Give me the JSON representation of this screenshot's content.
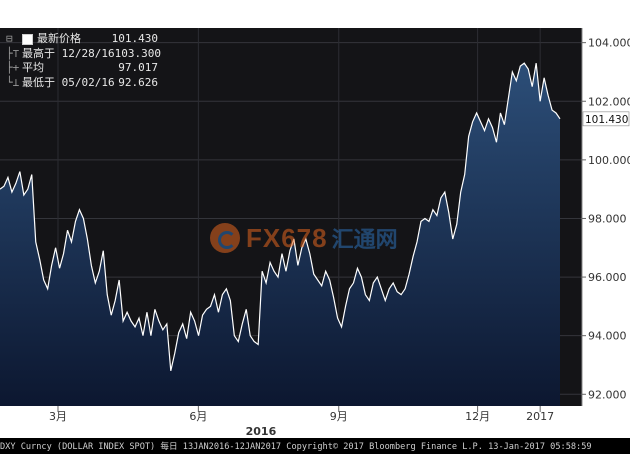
{
  "chart_data": {
    "type": "area",
    "ticker": "DXY Curncy (DOLLAR INDEX SPOT)",
    "frequency": "每日",
    "date_range": "13JAN2016-12JAN2017",
    "copyright": "Copyright© 2017 Bloomberg Finance L.P.",
    "timestamp": "13-Jan-2017 05:58:59",
    "ylim": [
      91.6,
      104.5
    ],
    "y_ticks": [
      "104.000",
      "102.000",
      "100.000",
      "98.000",
      "96.000",
      "94.000",
      "92.000"
    ],
    "y_tick_values": [
      104,
      102,
      100,
      98,
      96,
      94,
      92
    ],
    "x_ticks": [
      {
        "label": "3月",
        "x": 38
      },
      {
        "label": "6月",
        "x": 130
      },
      {
        "label": "9月",
        "x": 222
      },
      {
        "label": "12月",
        "x": 313
      },
      {
        "label": "2017",
        "x": 354
      }
    ],
    "year_label": {
      "label": "2016",
      "x": 171
    },
    "last_value": "101.430",
    "legend": [
      {
        "label": "最新价格",
        "value": "101.430"
      },
      {
        "label": "最高于 12/28/16",
        "value": "103.300"
      },
      {
        "label": "平均",
        "value": "97.017"
      },
      {
        "label": "最低于 05/02/16",
        "value": "92.626"
      }
    ],
    "x_max": 367,
    "values": [
      99.0,
      99.1,
      99.4,
      98.9,
      99.2,
      99.6,
      98.8,
      99.0,
      99.5,
      97.2,
      96.6,
      95.9,
      95.6,
      96.4,
      97.0,
      96.3,
      96.8,
      97.6,
      97.2,
      97.9,
      98.3,
      98.0,
      97.3,
      96.4,
      95.8,
      96.2,
      96.9,
      95.4,
      94.7,
      95.2,
      95.9,
      94.5,
      94.8,
      94.5,
      94.3,
      94.6,
      94.0,
      94.8,
      94.0,
      94.9,
      94.5,
      94.2,
      94.4,
      92.8,
      93.4,
      94.1,
      94.4,
      93.9,
      94.8,
      94.5,
      94.0,
      94.7,
      94.9,
      95.0,
      95.4,
      94.8,
      95.4,
      95.6,
      95.2,
      94.0,
      93.8,
      94.4,
      94.9,
      94.0,
      93.8,
      93.7,
      96.2,
      95.8,
      96.5,
      96.2,
      96.0,
      96.8,
      96.2,
      96.9,
      97.3,
      96.4,
      97.0,
      97.3,
      96.8,
      96.1,
      95.9,
      95.7,
      96.2,
      95.9,
      95.3,
      94.6,
      94.3,
      95.0,
      95.6,
      95.8,
      96.3,
      96.0,
      95.4,
      95.2,
      95.8,
      96.0,
      95.6,
      95.2,
      95.6,
      95.8,
      95.5,
      95.4,
      95.6,
      96.1,
      96.7,
      97.2,
      97.9,
      98.0,
      97.9,
      98.3,
      98.1,
      98.7,
      98.9,
      98.2,
      97.3,
      97.8,
      98.9,
      99.5,
      100.8,
      101.3,
      101.6,
      101.3,
      101.0,
      101.4,
      101.1,
      100.6,
      101.6,
      101.2,
      102.1,
      103.0,
      102.7,
      103.2,
      103.3,
      103.1,
      102.5,
      103.3,
      102.0,
      102.8,
      102.2,
      101.7,
      101.6,
      101.4
    ]
  },
  "watermark": {
    "text": "FX678",
    "cn": "汇通网"
  },
  "colors": {
    "bg": "#141417",
    "fill_top": "#2c4e78",
    "fill_bottom": "#0f1c33",
    "line": "#ffffff",
    "grid": "#34353b",
    "tick_text": "#e6e6e6"
  }
}
